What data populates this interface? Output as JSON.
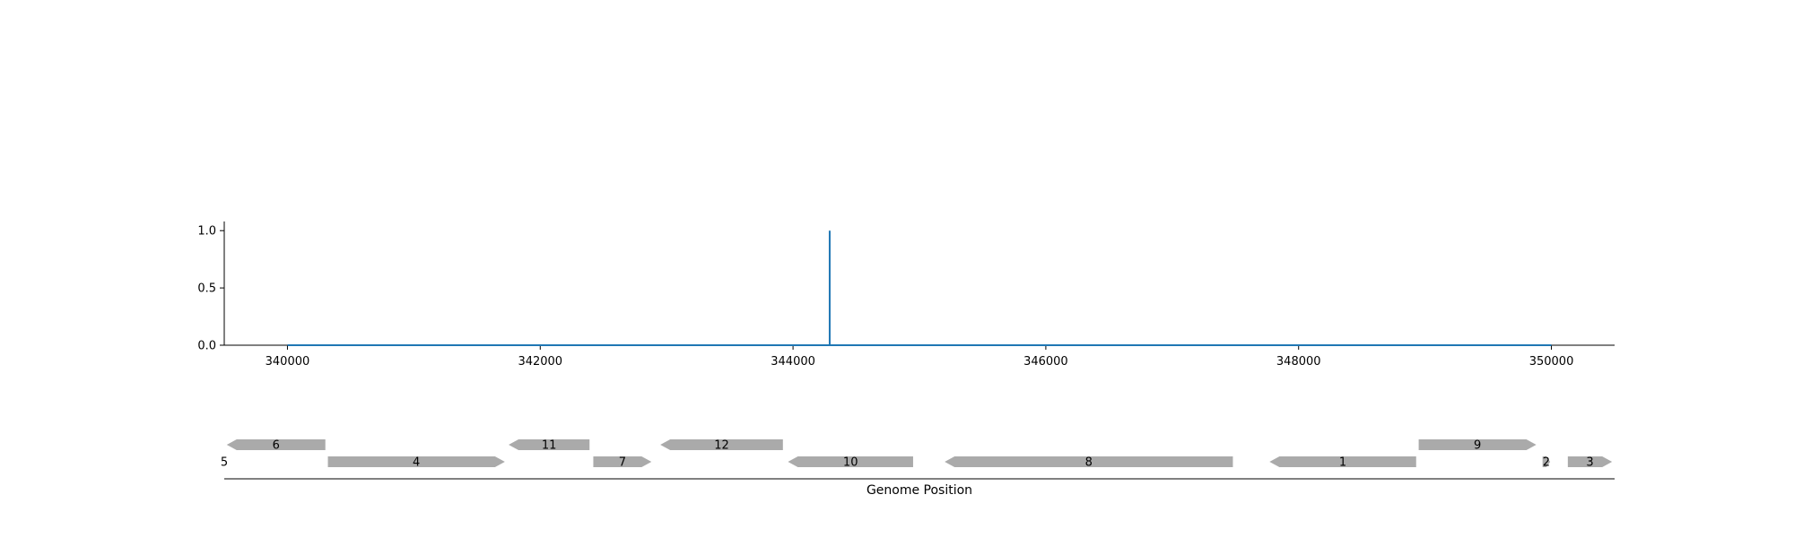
{
  "chart_data": [
    {
      "type": "line",
      "title": "",
      "xlabel": "",
      "ylabel": "",
      "xlim": [
        339500,
        350500
      ],
      "ylim": [
        0,
        1.08
      ],
      "xticks": [
        340000,
        342000,
        344000,
        346000,
        348000,
        350000
      ],
      "yticks": [
        0.0,
        0.5,
        1.0
      ],
      "ytick_labels": [
        "0.0",
        "0.5",
        "1.0"
      ],
      "color": "#1f77b4",
      "series": [
        {
          "x": [
            340000,
            344290,
            344290,
            344290,
            344290,
            350000
          ],
          "y": [
            0,
            0,
            1.0,
            1.0,
            0,
            0
          ]
        }
      ],
      "grid": false,
      "spines": [
        "left",
        "bottom"
      ]
    },
    {
      "type": "gene-map",
      "xlabel": "Genome Position",
      "xlim": [
        339500,
        350500
      ],
      "feature_color": "#aaaaaa",
      "features": [
        {
          "label": "5",
          "start": 339500,
          "end": 339500,
          "strand": 1,
          "row": 0
        },
        {
          "label": "6",
          "start": 339520,
          "end": 340300,
          "strand": -1,
          "row": 1
        },
        {
          "label": "4",
          "start": 340320,
          "end": 341720,
          "strand": 1,
          "row": 0
        },
        {
          "label": "11",
          "start": 341750,
          "end": 342390,
          "strand": -1,
          "row": 1
        },
        {
          "label": "7",
          "start": 342420,
          "end": 342880,
          "strand": 1,
          "row": 0
        },
        {
          "label": "12",
          "start": 342950,
          "end": 343920,
          "strand": -1,
          "row": 1
        },
        {
          "label": "10",
          "start": 343960,
          "end": 344950,
          "strand": -1,
          "row": 0
        },
        {
          "label": "8",
          "start": 345200,
          "end": 347480,
          "strand": -1,
          "row": 0
        },
        {
          "label": "1",
          "start": 347770,
          "end": 348930,
          "strand": -1,
          "row": 0
        },
        {
          "label": "9",
          "start": 348950,
          "end": 349880,
          "strand": 1,
          "row": 1
        },
        {
          "label": "2",
          "start": 349930,
          "end": 349990,
          "strand": 1,
          "row": 0
        },
        {
          "label": "3",
          "start": 350130,
          "end": 350480,
          "strand": 1,
          "row": 0
        }
      ]
    }
  ]
}
